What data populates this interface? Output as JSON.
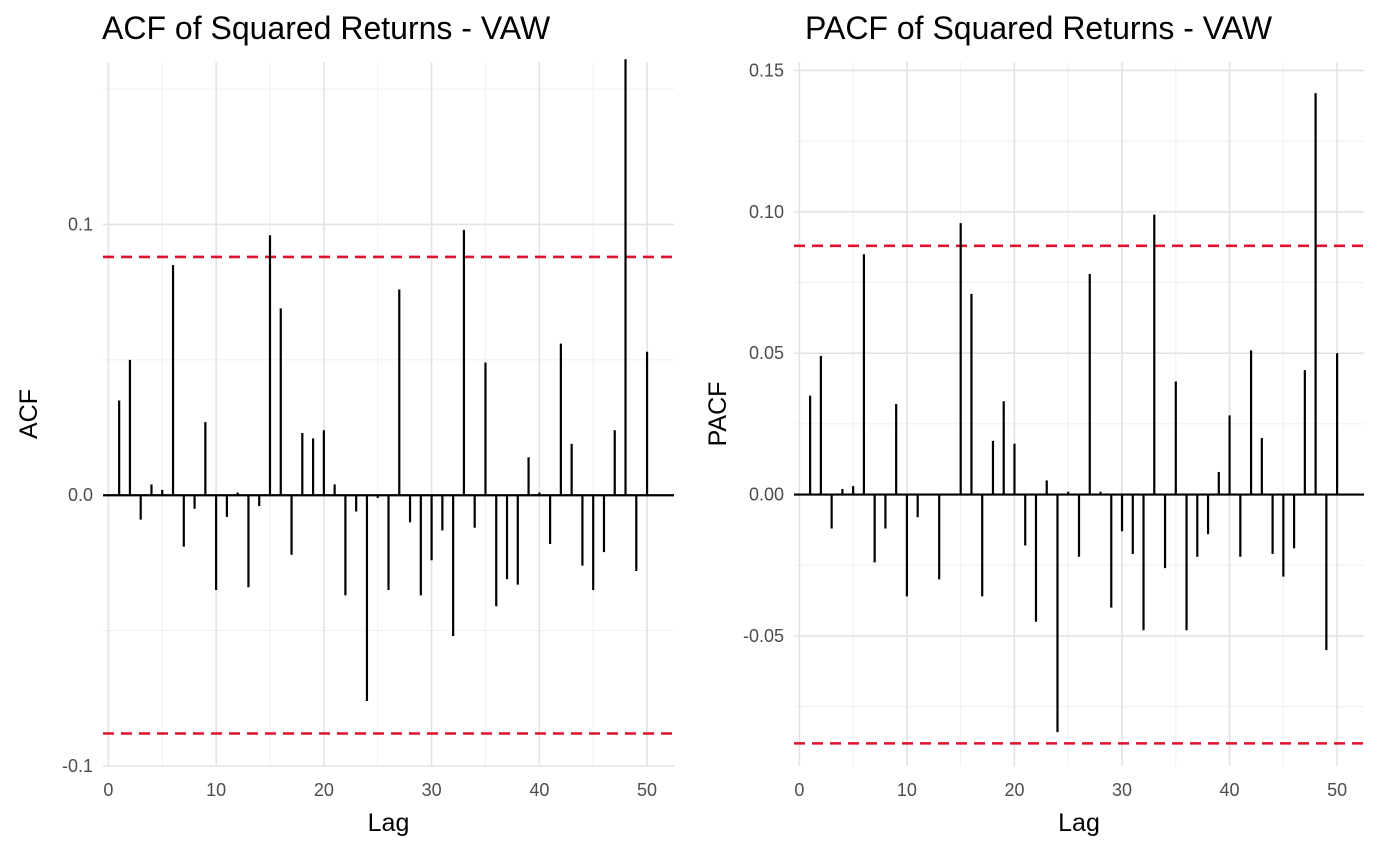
{
  "chart_data": [
    {
      "type": "bar",
      "title": "ACF of Squared Returns - VAW",
      "xlabel": "Lag",
      "ylabel": "ACF",
      "xlim": [
        -0.5,
        52.5
      ],
      "ylim": [
        -0.1,
        0.16
      ],
      "x_ticks": [
        0,
        10,
        20,
        30,
        40,
        50
      ],
      "x_tick_labels": [
        "0",
        "10",
        "20",
        "30",
        "40",
        "50"
      ],
      "y_ticks": [
        -0.1,
        0.0,
        0.1
      ],
      "y_tick_labels": [
        "-0.1",
        "0.0",
        "0.1"
      ],
      "confidence_band": 0.088,
      "confidence_color": "#e0102f",
      "bar_color": "#000000",
      "grid": true,
      "lags": [
        1,
        2,
        3,
        4,
        5,
        6,
        7,
        8,
        9,
        10,
        11,
        12,
        13,
        14,
        15,
        16,
        17,
        18,
        19,
        20,
        21,
        22,
        23,
        24,
        25,
        26,
        27,
        28,
        29,
        30,
        31,
        32,
        33,
        34,
        35,
        36,
        37,
        38,
        39,
        40,
        41,
        42,
        43,
        44,
        45,
        46,
        47,
        48,
        49,
        50
      ],
      "values": [
        0.035,
        0.05,
        -0.009,
        0.004,
        0.002,
        0.085,
        -0.019,
        -0.005,
        0.027,
        -0.035,
        -0.008,
        0.001,
        -0.034,
        -0.004,
        0.096,
        0.069,
        -0.022,
        0.023,
        0.021,
        0.024,
        0.004,
        -0.037,
        -0.006,
        -0.076,
        -0.001,
        -0.035,
        0.076,
        -0.01,
        -0.037,
        -0.024,
        -0.013,
        -0.052,
        0.098,
        -0.012,
        0.049,
        -0.041,
        -0.031,
        -0.033,
        0.014,
        0.001,
        -0.018,
        0.056,
        0.019,
        -0.026,
        -0.035,
        -0.021,
        0.024,
        0.161,
        -0.028,
        0.053
      ]
    },
    {
      "type": "bar",
      "title": "PACF of Squared Returns - VAW",
      "xlabel": "Lag",
      "ylabel": "PACF",
      "xlim": [
        -0.5,
        52.5
      ],
      "ylim": [
        -0.096,
        0.153
      ],
      "x_ticks": [
        0,
        10,
        20,
        30,
        40,
        50
      ],
      "x_tick_labels": [
        "0",
        "10",
        "20",
        "30",
        "40",
        "50"
      ],
      "y_ticks": [
        -0.05,
        0.0,
        0.05,
        0.1,
        0.15
      ],
      "y_tick_labels": [
        "-0.05",
        "0.00",
        "0.05",
        "0.10",
        "0.15"
      ],
      "confidence_band": 0.088,
      "confidence_color": "#e0102f",
      "bar_color": "#000000",
      "grid": true,
      "lags": [
        1,
        2,
        3,
        4,
        5,
        6,
        7,
        8,
        9,
        10,
        11,
        12,
        13,
        14,
        15,
        16,
        17,
        18,
        19,
        20,
        21,
        22,
        23,
        24,
        25,
        26,
        27,
        28,
        29,
        30,
        31,
        32,
        33,
        34,
        35,
        36,
        37,
        38,
        39,
        40,
        41,
        42,
        43,
        44,
        45,
        46,
        47,
        48,
        49,
        50
      ],
      "values": [
        0.035,
        0.049,
        -0.012,
        0.002,
        0.003,
        0.085,
        -0.024,
        -0.012,
        0.032,
        -0.036,
        -0.008,
        0.0,
        -0.03,
        0.0,
        0.096,
        0.071,
        -0.036,
        0.019,
        0.033,
        0.018,
        -0.018,
        -0.045,
        0.005,
        -0.084,
        0.001,
        -0.022,
        0.078,
        0.001,
        -0.04,
        -0.013,
        -0.021,
        -0.048,
        0.099,
        -0.026,
        0.04,
        -0.048,
        -0.022,
        -0.014,
        0.008,
        0.028,
        -0.022,
        0.051,
        0.02,
        -0.021,
        -0.029,
        -0.019,
        0.044,
        0.142,
        -0.055,
        0.05
      ]
    }
  ]
}
